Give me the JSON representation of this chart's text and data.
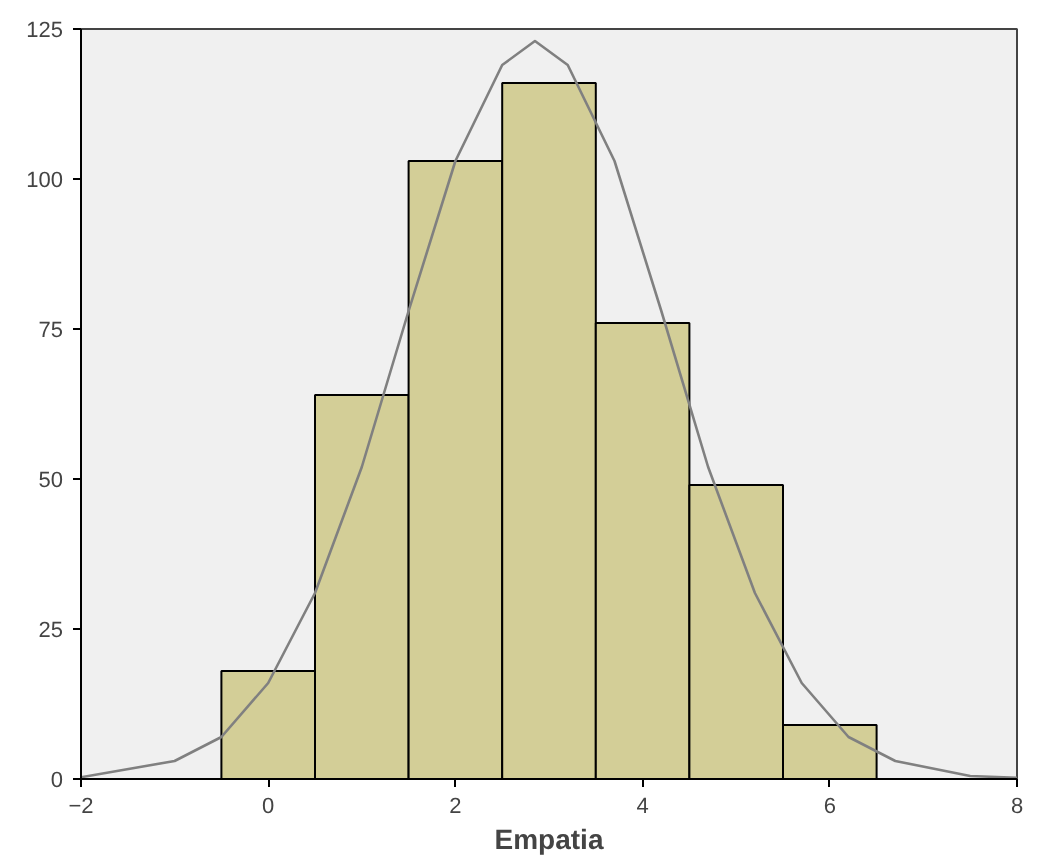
{
  "chart_data": {
    "type": "histogram",
    "xlabel": "Empatia",
    "bins": [
      -0.5,
      0.5,
      1.5,
      2.5,
      3.5,
      4.5,
      5.5,
      6.5
    ],
    "values": [
      18,
      64,
      103,
      116,
      76,
      49,
      9
    ],
    "color": "#d3ce97",
    "series": [
      {
        "type": "line",
        "color": "#808080",
        "x": [
          -2,
          -1,
          -0.5,
          0,
          0.5,
          1,
          1.5,
          2,
          2.5,
          2.85,
          3.2,
          3.7,
          4.2,
          4.7,
          5.2,
          5.7,
          6.2,
          6.7,
          7.5,
          8
        ],
        "values": [
          0.3,
          3,
          7,
          16,
          31,
          52,
          78,
          103,
          119,
          123,
          119,
          103,
          78,
          52,
          31,
          16,
          7,
          3,
          0.5,
          0.2
        ]
      }
    ],
    "xlim": [
      -2,
      8
    ],
    "xticks": [
      -2,
      0,
      2,
      4,
      6,
      8
    ],
    "ylim": [
      0,
      125
    ],
    "yticks": [
      0,
      25,
      50,
      75,
      100,
      125
    ],
    "grid": false
  }
}
